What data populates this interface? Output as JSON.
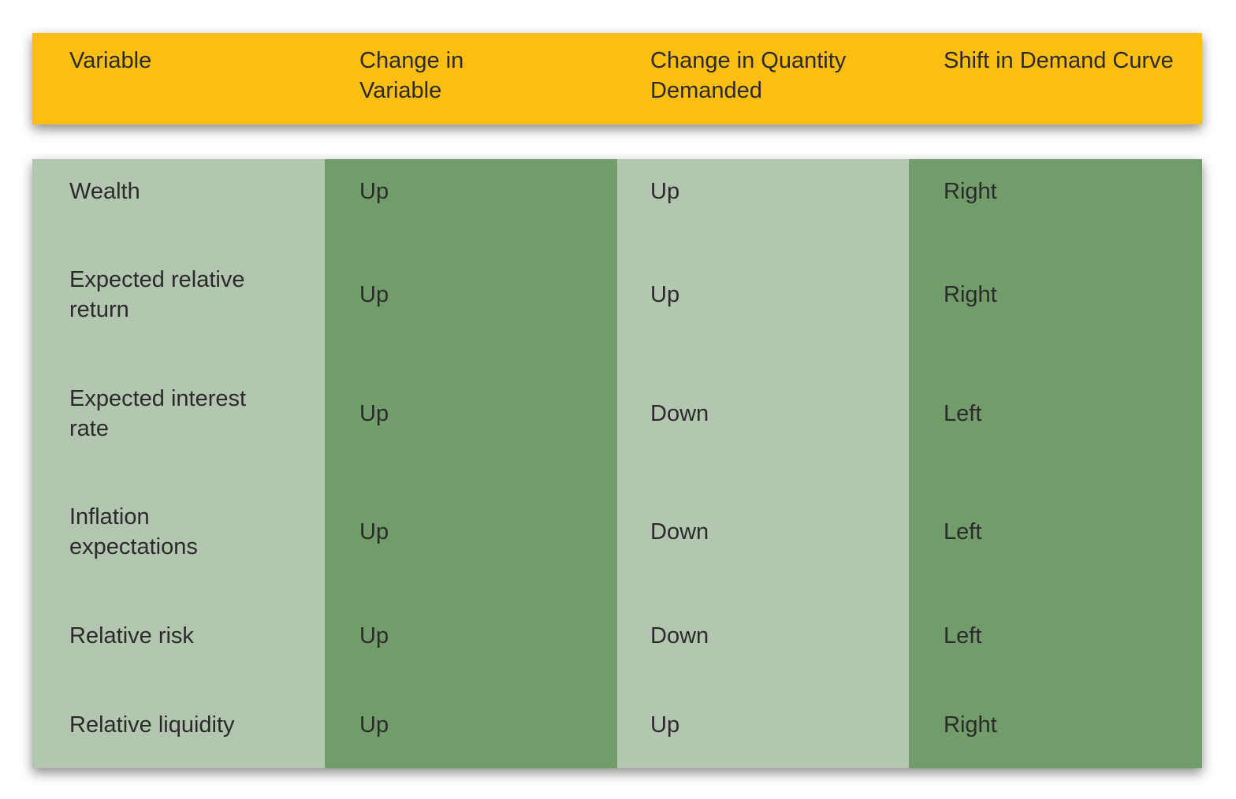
{
  "table": {
    "header": [
      "Variable",
      "Change in Variable",
      "Change in Quantity Demanded",
      "Shift in Demand Curve"
    ],
    "rows": [
      [
        "Wealth",
        "Up",
        "Up",
        "Right"
      ],
      [
        "Expected relative return",
        "Up",
        "Up",
        "Right"
      ],
      [
        "Expected interest rate",
        "Up",
        "Down",
        "Left"
      ],
      [
        "Inflation expectations",
        "Up",
        "Down",
        "Left"
      ],
      [
        "Relative risk",
        "Up",
        "Down",
        "Left"
      ],
      [
        "Relative liquidity",
        "Up",
        "Up",
        "Right"
      ]
    ]
  }
}
